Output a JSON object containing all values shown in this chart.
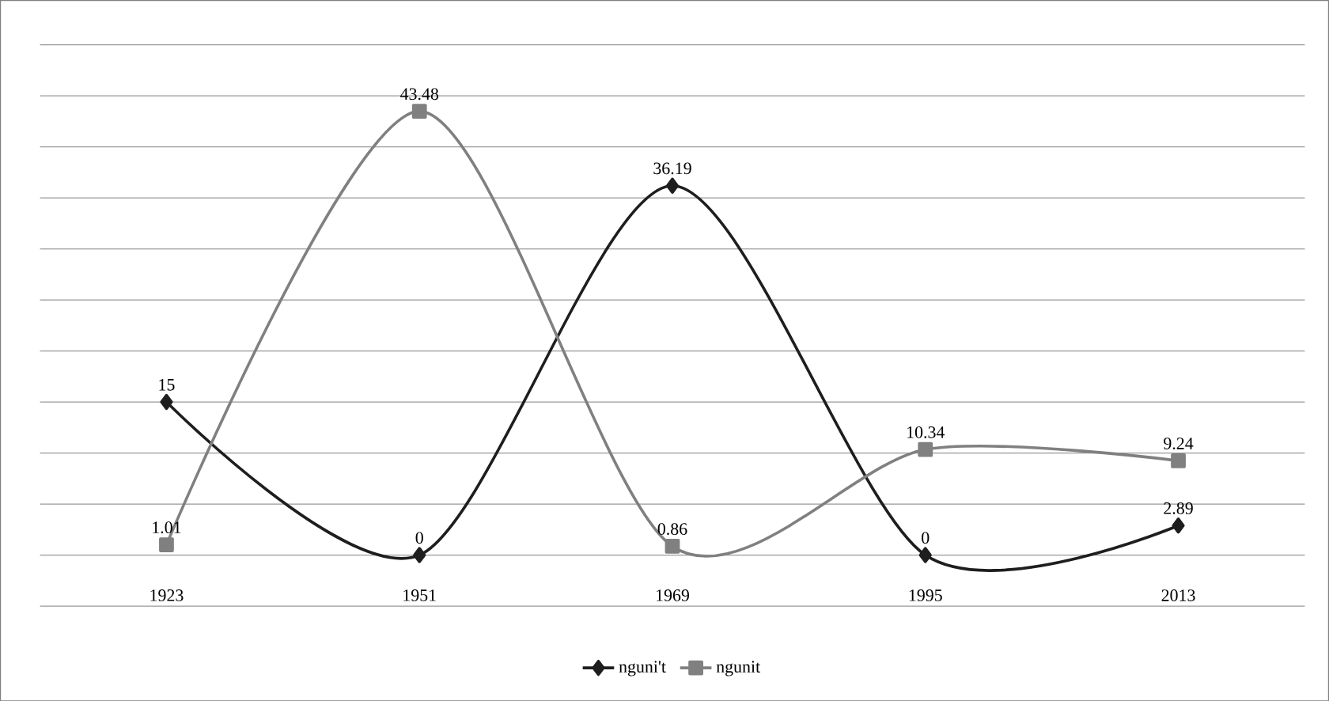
{
  "chart_data": {
    "type": "line",
    "categories": [
      "1923",
      "1951",
      "1969",
      "1995",
      "2013"
    ],
    "series": [
      {
        "name": "nguni't",
        "color": "#1e1e1e",
        "marker": "diamond",
        "values": [
          15,
          0,
          36.19,
          0,
          2.89
        ]
      },
      {
        "name": "ngunit",
        "color": "#808080",
        "marker": "square",
        "values": [
          1.01,
          43.48,
          0.86,
          10.34,
          9.24
        ]
      }
    ],
    "ylim": [
      -5,
      50
    ],
    "yticks": [
      {
        "value": -5,
        "label": null
      },
      {
        "value": 0,
        "label": null
      },
      {
        "value": 5,
        "label": null
      },
      {
        "value": 10,
        "label": null
      },
      {
        "value": 15,
        "label": null
      },
      {
        "value": 20,
        "label": null
      },
      {
        "value": 25,
        "label": null
      },
      {
        "value": 30,
        "label": null
      },
      {
        "value": 35,
        "label": null
      },
      {
        "value": 40,
        "label": null
      },
      {
        "value": 45,
        "label": null
      },
      {
        "value": 50,
        "label": null
      }
    ],
    "tick_labels": "x",
    "grid": "y",
    "legend": "bottom",
    "line_style": "solid",
    "data_labels": true
  }
}
